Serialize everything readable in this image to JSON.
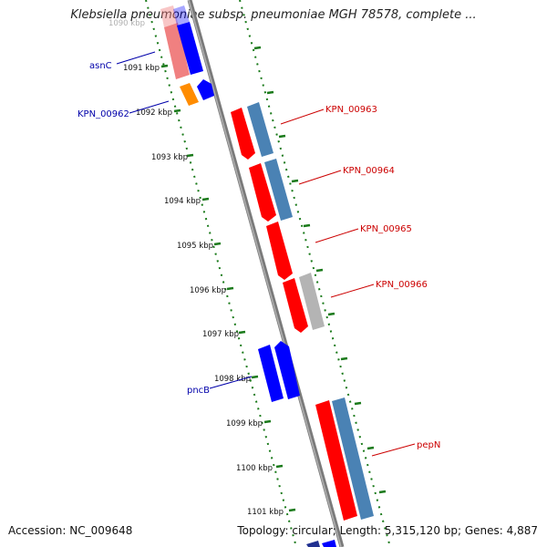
{
  "title": "Klebsiella pneumoniae subsp. pneumoniae MGH 78578, complete ...",
  "footer": {
    "accession": "Accession: NC_009648",
    "summary": "Topology: circular; Length: 5,315,120 bp; Genes: 4,887"
  },
  "ticks": [
    {
      "label": "1090 kbp",
      "faded": true
    },
    {
      "label": "1091 kbp"
    },
    {
      "label": "1092 kbp"
    },
    {
      "label": "1093 kbp"
    },
    {
      "label": "1094 kbp"
    },
    {
      "label": "1095 kbp"
    },
    {
      "label": "1096 kbp"
    },
    {
      "label": "1097 kbp"
    },
    {
      "label": "1098 kbp"
    },
    {
      "label": "1099 kbp"
    },
    {
      "label": "1100 kbp"
    },
    {
      "label": "1101 kbp"
    }
  ],
  "labels": {
    "asnC": "asnC",
    "kpn00962": "KPN_00962",
    "kpn00963": "KPN_00963",
    "kpn00964": "KPN_00964",
    "kpn00965": "KPN_00965",
    "kpn00966": "KPN_00966",
    "pncB": "pncB",
    "pepN": "pepN"
  },
  "colors": {
    "backbone": "#7a7a7a",
    "tick": "#1a7a1a",
    "gene_red": "#ff0000",
    "gene_blue": "#0000ff",
    "gene_steel": "#4a82b4",
    "gene_gray": "#b4b4b4",
    "gene_orange": "#ff8c00",
    "gene_pink": "#f08080",
    "label_red": "#cc0000",
    "label_blue": "#0000aa"
  }
}
